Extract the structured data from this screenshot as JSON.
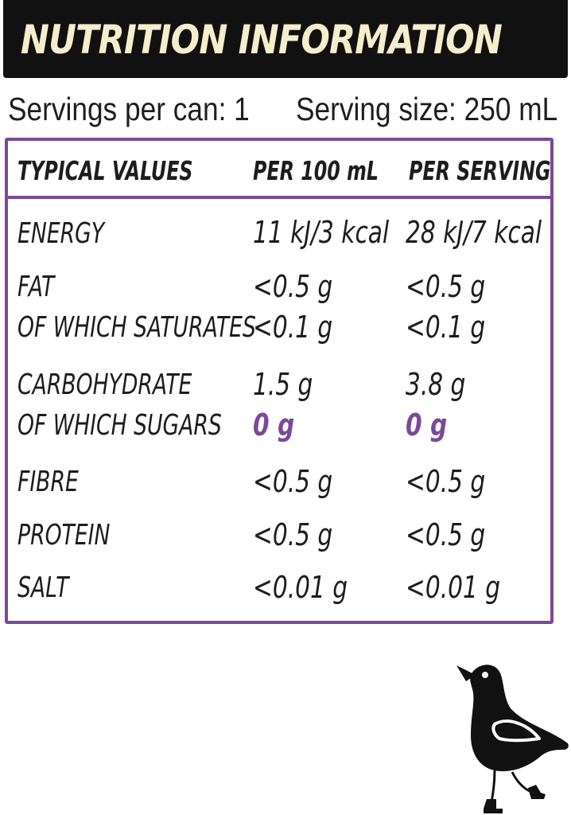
{
  "title": "NUTRITION INFORMATION",
  "servings_per_can": "Servings per can: 1",
  "serving_size": "Serving size: 250 mL",
  "colors": {
    "accent": "#7a4a96",
    "title_bar": "#111111",
    "title_text": "#f4eecd"
  },
  "headers": {
    "label": "TYPICAL VALUES",
    "per100": "PER 100 mL",
    "perServing": "PER SERVING"
  },
  "rows": [
    {
      "label": "ENERGY",
      "per100": "11 kJ/3 kcal",
      "perServing": "28 kJ/7 kcal"
    },
    {
      "label": "FAT",
      "per100": "<0.5 g",
      "perServing": "<0.5 g"
    },
    {
      "label": "OF WHICH SATURATES",
      "per100": "<0.1 g",
      "perServing": "<0.1 g"
    },
    {
      "label": "CARBOHYDRATE",
      "per100": "1.5 g",
      "perServing": "3.8 g"
    },
    {
      "label": "OF WHICH SUGARS",
      "per100": "0 g",
      "perServing": "0 g"
    },
    {
      "label": "FIBRE",
      "per100": "<0.5 g",
      "perServing": "<0.5 g"
    },
    {
      "label": "PROTEIN",
      "per100": "<0.5 g",
      "perServing": "<0.5 g"
    },
    {
      "label": "SALT",
      "per100": "<0.01 g",
      "perServing": "<0.01 g"
    }
  ],
  "mascot": {
    "icon": "bird-mascot-icon"
  }
}
